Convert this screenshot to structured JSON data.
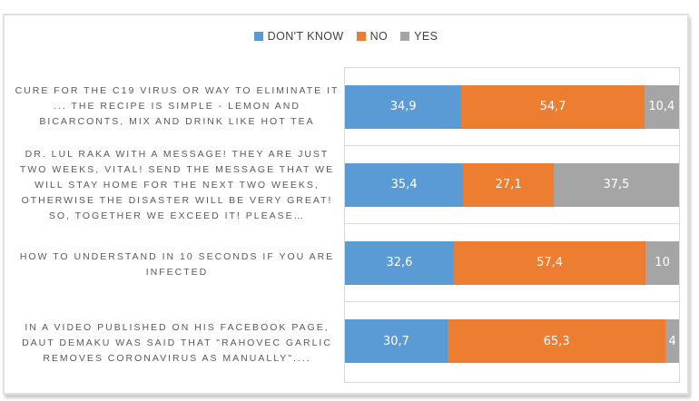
{
  "colors": {
    "dont_know": "#5B9BD5",
    "no": "#ED7D31",
    "yes": "#A5A5A5",
    "value_text": "#ffffff",
    "category_text": "#595959",
    "legend_text": "#404040",
    "gridline": "#d9d9d9",
    "frame_border": "#e0e0e0"
  },
  "legend": {
    "position": "top-center",
    "items": [
      {
        "label": "DON'T KNOW",
        "color": "#5B9BD5"
      },
      {
        "label": "NO",
        "color": "#ED7D31"
      },
      {
        "label": "YES",
        "color": "#A5A5A5"
      }
    ]
  },
  "chart_data": {
    "type": "bar",
    "variant": "horizontal-stacked-100-percent",
    "title": "",
    "xlabel": "",
    "ylabel": "",
    "xlim": [
      0,
      100
    ],
    "grid": "category-boundary-lines",
    "legend_position": "top-center",
    "categories": [
      "CURE FOR THE C19 VIRUS OR WAY TO ELIMINATE IT ... THE RECIPE IS SIMPLE - LEMON AND BICARCONTS, MIX AND DRINK LIKE HOT TEA",
      "DR. LUL RAKA WITH A MESSAGE! THEY ARE JUST TWO WEEKS, VITAL! SEND THE MESSAGE THAT WE WILL STAY HOME FOR THE NEXT TWO WEEKS, OTHERWISE THE DISASTER WILL BE VERY GREAT! SO, TOGETHER WE EXCEED IT! PLEASE…",
      "HOW TO UNDERSTAND IN 10 SECONDS IF YOU ARE INFECTED",
      "IN A VIDEO PUBLISHED ON HIS FACEBOOK PAGE, DAUT DEMAKU WAS SAID THAT \"RAHOVEC GARLIC REMOVES CORONAVIRUS AS MANUALLY\"...."
    ],
    "series": [
      {
        "name": "DON'T KNOW",
        "color": "#5B9BD5",
        "values": [
          34.9,
          35.4,
          32.6,
          30.7
        ]
      },
      {
        "name": "NO",
        "color": "#ED7D31",
        "values": [
          54.7,
          27.1,
          57.4,
          65.3
        ]
      },
      {
        "name": "YES",
        "color": "#A5A5A5",
        "values": [
          10.4,
          37.5,
          10,
          4
        ]
      }
    ],
    "value_labels": [
      [
        "34,9",
        "54,7",
        "10,4"
      ],
      [
        "35,4",
        "27,1",
        "37,5"
      ],
      [
        "32,6",
        "57,4",
        "10"
      ],
      [
        "30,7",
        "65,3",
        "4"
      ]
    ]
  }
}
